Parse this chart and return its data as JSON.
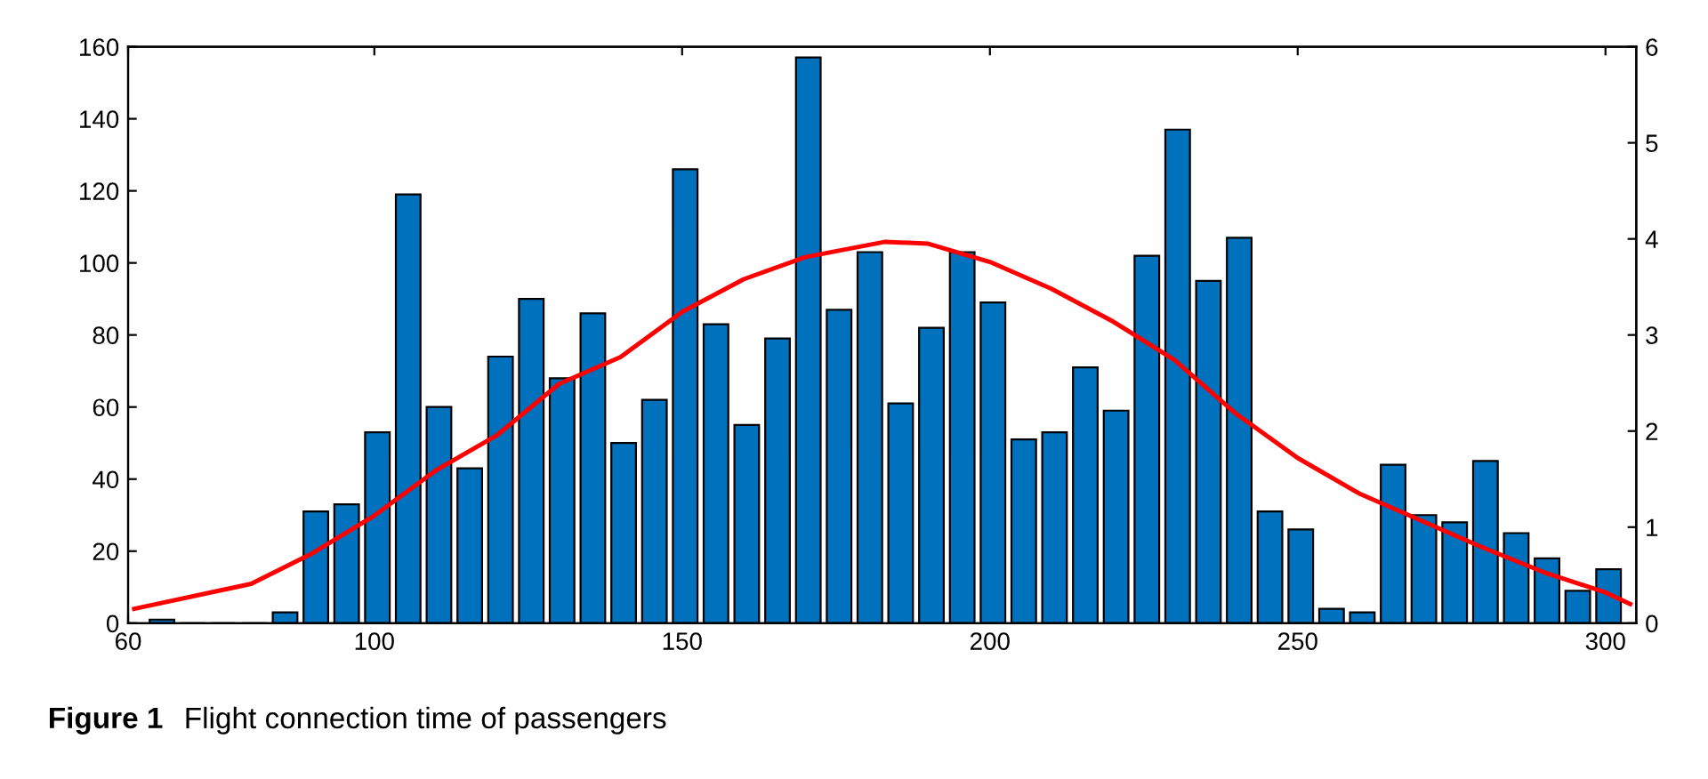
{
  "chart_data": {
    "type": "histogram",
    "bins": [
      63,
      68,
      73,
      78,
      83,
      88,
      93,
      98,
      103,
      108,
      113,
      118,
      123,
      128,
      133,
      138,
      143,
      148,
      153,
      158,
      163,
      168,
      173,
      178,
      183,
      188,
      193,
      198,
      203,
      208,
      213,
      218,
      223,
      228,
      233,
      238,
      243,
      248,
      253,
      258,
      263,
      268,
      273,
      278,
      283,
      288,
      293,
      298,
      303
    ],
    "values": [
      1,
      0,
      0,
      0,
      3,
      31,
      33,
      53,
      119,
      60,
      43,
      74,
      90,
      68,
      86,
      50,
      62,
      126,
      83,
      55,
      79,
      157,
      87,
      103,
      61,
      82,
      103,
      89,
      51,
      53,
      71,
      59,
      102,
      137,
      95,
      107,
      31,
      26,
      4,
      3,
      44,
      30,
      28,
      45,
      25,
      18,
      9,
      15
    ],
    "color": "#0072bd",
    "series": [
      {
        "type": "line",
        "axis": "y2",
        "color": "#ff0000",
        "x": [
          61,
          80,
          90,
          100,
          110,
          120,
          130,
          140,
          150,
          160,
          170,
          183,
          190,
          200,
          210,
          220,
          230,
          240,
          250,
          260,
          270,
          280,
          290,
          300,
          304
        ],
        "values": [
          0.15,
          0.41,
          0.73,
          1.12,
          1.59,
          1.96,
          2.49,
          2.77,
          3.24,
          3.58,
          3.81,
          3.97,
          3.95,
          3.76,
          3.48,
          3.14,
          2.74,
          2.18,
          1.72,
          1.35,
          1.07,
          0.79,
          0.53,
          0.32,
          0.2
        ]
      }
    ],
    "xlim": [
      60,
      305
    ],
    "xticks": [
      60,
      100,
      150,
      200,
      250,
      300
    ],
    "ylim": [
      0,
      160
    ],
    "yticks": [
      0,
      20,
      40,
      60,
      80,
      100,
      120,
      140,
      160
    ],
    "y2lim": [
      0,
      6
    ],
    "y2ticks": [
      0,
      1,
      2,
      3,
      4,
      5,
      6
    ],
    "grid": false,
    "legend": false,
    "annotations": [
      "Figure 1  Flight connection time of passengers"
    ]
  }
}
